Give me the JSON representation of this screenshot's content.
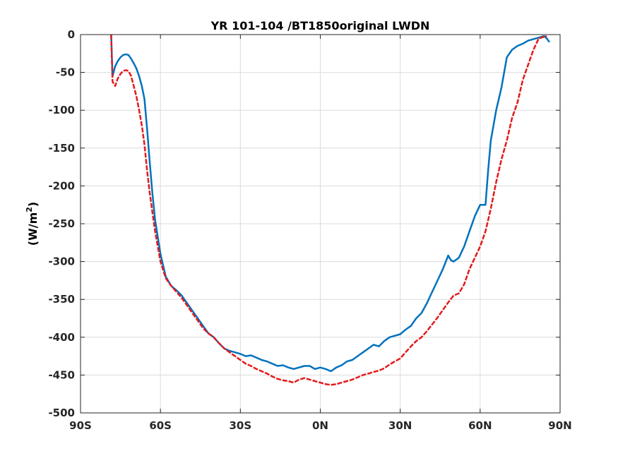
{
  "chart_data": {
    "type": "line",
    "title": "YR 101-104 /BT1850original LWDN",
    "xlabel": "",
    "ylabel_text": "(W/m",
    "ylabel_sup": "2",
    "ylabel_close": ")",
    "xlim": [
      -90,
      90
    ],
    "ylim": [
      -500,
      0
    ],
    "xticks": [
      -90,
      -60,
      -30,
      0,
      30,
      60,
      90
    ],
    "xtick_labels": [
      "90S",
      "60S",
      "30S",
      "0N",
      "30N",
      "60N",
      "90N"
    ],
    "yticks": [
      -500,
      -450,
      -400,
      -350,
      -300,
      -250,
      -200,
      -150,
      -100,
      -50,
      0
    ],
    "ytick_labels": [
      "-500",
      "-450",
      "-400",
      "-350",
      "-300",
      "-250",
      "-200",
      "-150",
      "-100",
      "-50",
      "0"
    ],
    "grid": true,
    "legend": "none",
    "series": [
      {
        "color": "#0072bd",
        "style": "solid",
        "x": [
          -78.5,
          -78,
          -77,
          -76,
          -75,
          -74,
          -73,
          -72,
          -71,
          -70,
          -69,
          -68,
          -67,
          -66,
          -65,
          -64,
          -63,
          -62,
          -60,
          -58,
          -56,
          -54,
          -52,
          -50,
          -48,
          -46,
          -44,
          -42,
          -40,
          -38,
          -36,
          -34,
          -32,
          -30,
          -28,
          -26,
          -24,
          -22,
          -20,
          -18,
          -16,
          -14,
          -12,
          -10,
          -8,
          -6,
          -4,
          -2,
          0,
          2,
          4,
          6,
          8,
          10,
          12,
          14,
          16,
          18,
          20,
          22,
          24,
          26,
          28,
          30,
          32,
          34,
          36,
          38,
          40,
          42,
          44,
          46,
          48,
          49,
          50,
          52,
          54,
          56,
          58,
          60,
          62,
          63,
          64,
          66,
          68,
          70,
          72,
          74,
          76,
          78,
          80,
          82,
          84,
          85,
          86
        ],
        "values": [
          0,
          -55,
          -42,
          -35,
          -30,
          -27,
          -26,
          -27,
          -32,
          -38,
          -45,
          -55,
          -68,
          -85,
          -125,
          -170,
          -210,
          -245,
          -290,
          -320,
          -332,
          -338,
          -345,
          -355,
          -365,
          -375,
          -385,
          -395,
          -400,
          -408,
          -415,
          -418,
          -420,
          -422,
          -425,
          -424,
          -427,
          -430,
          -432,
          -435,
          -438,
          -437,
          -440,
          -442,
          -440,
          -438,
          -438,
          -442,
          -440,
          -442,
          -445,
          -440,
          -437,
          -432,
          -430,
          -425,
          -420,
          -415,
          -410,
          -412,
          -405,
          -400,
          -398,
          -396,
          -390,
          -385,
          -375,
          -368,
          -355,
          -340,
          -325,
          -310,
          -292,
          -298,
          -300,
          -295,
          -280,
          -260,
          -240,
          -225,
          -225,
          -180,
          -140,
          -100,
          -70,
          -30,
          -20,
          -15,
          -12,
          -8,
          -6,
          -4,
          -2,
          -5,
          -10
        ]
      },
      {
        "color": "#e41a1c",
        "style": "dashed",
        "x": [
          -78.5,
          -78,
          -77,
          -76,
          -75,
          -74,
          -73,
          -72,
          -71,
          -70,
          -69,
          -68,
          -67,
          -66,
          -65,
          -64,
          -63,
          -62,
          -60,
          -58,
          -56,
          -54,
          -52,
          -50,
          -48,
          -46,
          -44,
          -42,
          -40,
          -38,
          -36,
          -34,
          -32,
          -30,
          -28,
          -26,
          -24,
          -22,
          -20,
          -18,
          -16,
          -14,
          -12,
          -10,
          -8,
          -6,
          -4,
          -2,
          0,
          2,
          4,
          6,
          8,
          10,
          12,
          14,
          16,
          18,
          20,
          22,
          24,
          26,
          28,
          30,
          32,
          34,
          36,
          38,
          40,
          42,
          44,
          46,
          48,
          50,
          52,
          54,
          56,
          58,
          60,
          62,
          64,
          66,
          68,
          70,
          72,
          74,
          76,
          78,
          80,
          82,
          84,
          85
        ],
        "values": [
          0,
          -62,
          -68,
          -58,
          -52,
          -48,
          -47,
          -48,
          -55,
          -68,
          -82,
          -100,
          -120,
          -145,
          -180,
          -210,
          -235,
          -260,
          -300,
          -322,
          -332,
          -340,
          -348,
          -358,
          -368,
          -378,
          -388,
          -395,
          -400,
          -408,
          -415,
          -420,
          -425,
          -430,
          -435,
          -438,
          -442,
          -445,
          -448,
          -452,
          -455,
          -457,
          -458,
          -460,
          -456,
          -454,
          -456,
          -458,
          -460,
          -462,
          -463,
          -462,
          -460,
          -458,
          -456,
          -453,
          -450,
          -448,
          -446,
          -444,
          -441,
          -436,
          -432,
          -428,
          -420,
          -412,
          -405,
          -400,
          -392,
          -383,
          -374,
          -364,
          -354,
          -345,
          -342,
          -330,
          -310,
          -295,
          -280,
          -260,
          -230,
          -195,
          -165,
          -140,
          -110,
          -90,
          -60,
          -40,
          -20,
          -5,
          -3,
          -2
        ]
      }
    ]
  }
}
